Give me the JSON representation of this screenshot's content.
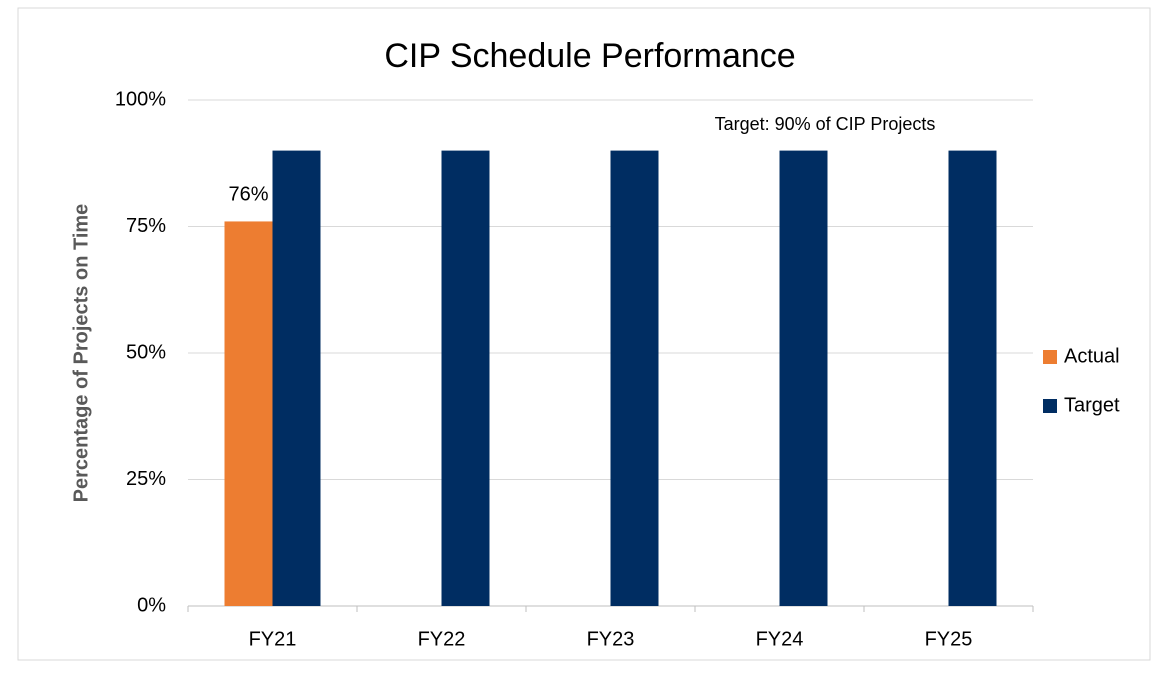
{
  "chart_data": {
    "type": "bar",
    "title": "CIP Schedule Performance",
    "y_label": "Percentage of Projects on Time",
    "annotation": "Target:  90% of CIP Projects",
    "categories": [
      "FY21",
      "FY22",
      "FY23",
      "FY24",
      "FY25"
    ],
    "series": [
      {
        "name": "Actual",
        "color": "#ed7d31",
        "values": [
          76,
          null,
          null,
          null,
          null
        ],
        "value_labels": [
          "76%",
          null,
          null,
          null,
          null
        ]
      },
      {
        "name": "Target",
        "color": "#002d62",
        "values": [
          90,
          90,
          90,
          90,
          90
        ]
      }
    ],
    "ylim": [
      0,
      100
    ],
    "yticks": [
      {
        "value": 0,
        "label": "0%"
      },
      {
        "value": 25,
        "label": "25%"
      },
      {
        "value": 50,
        "label": "50%"
      },
      {
        "value": 75,
        "label": "75%"
      },
      {
        "value": 100,
        "label": "100%"
      }
    ],
    "grid": true,
    "legend": "right"
  }
}
